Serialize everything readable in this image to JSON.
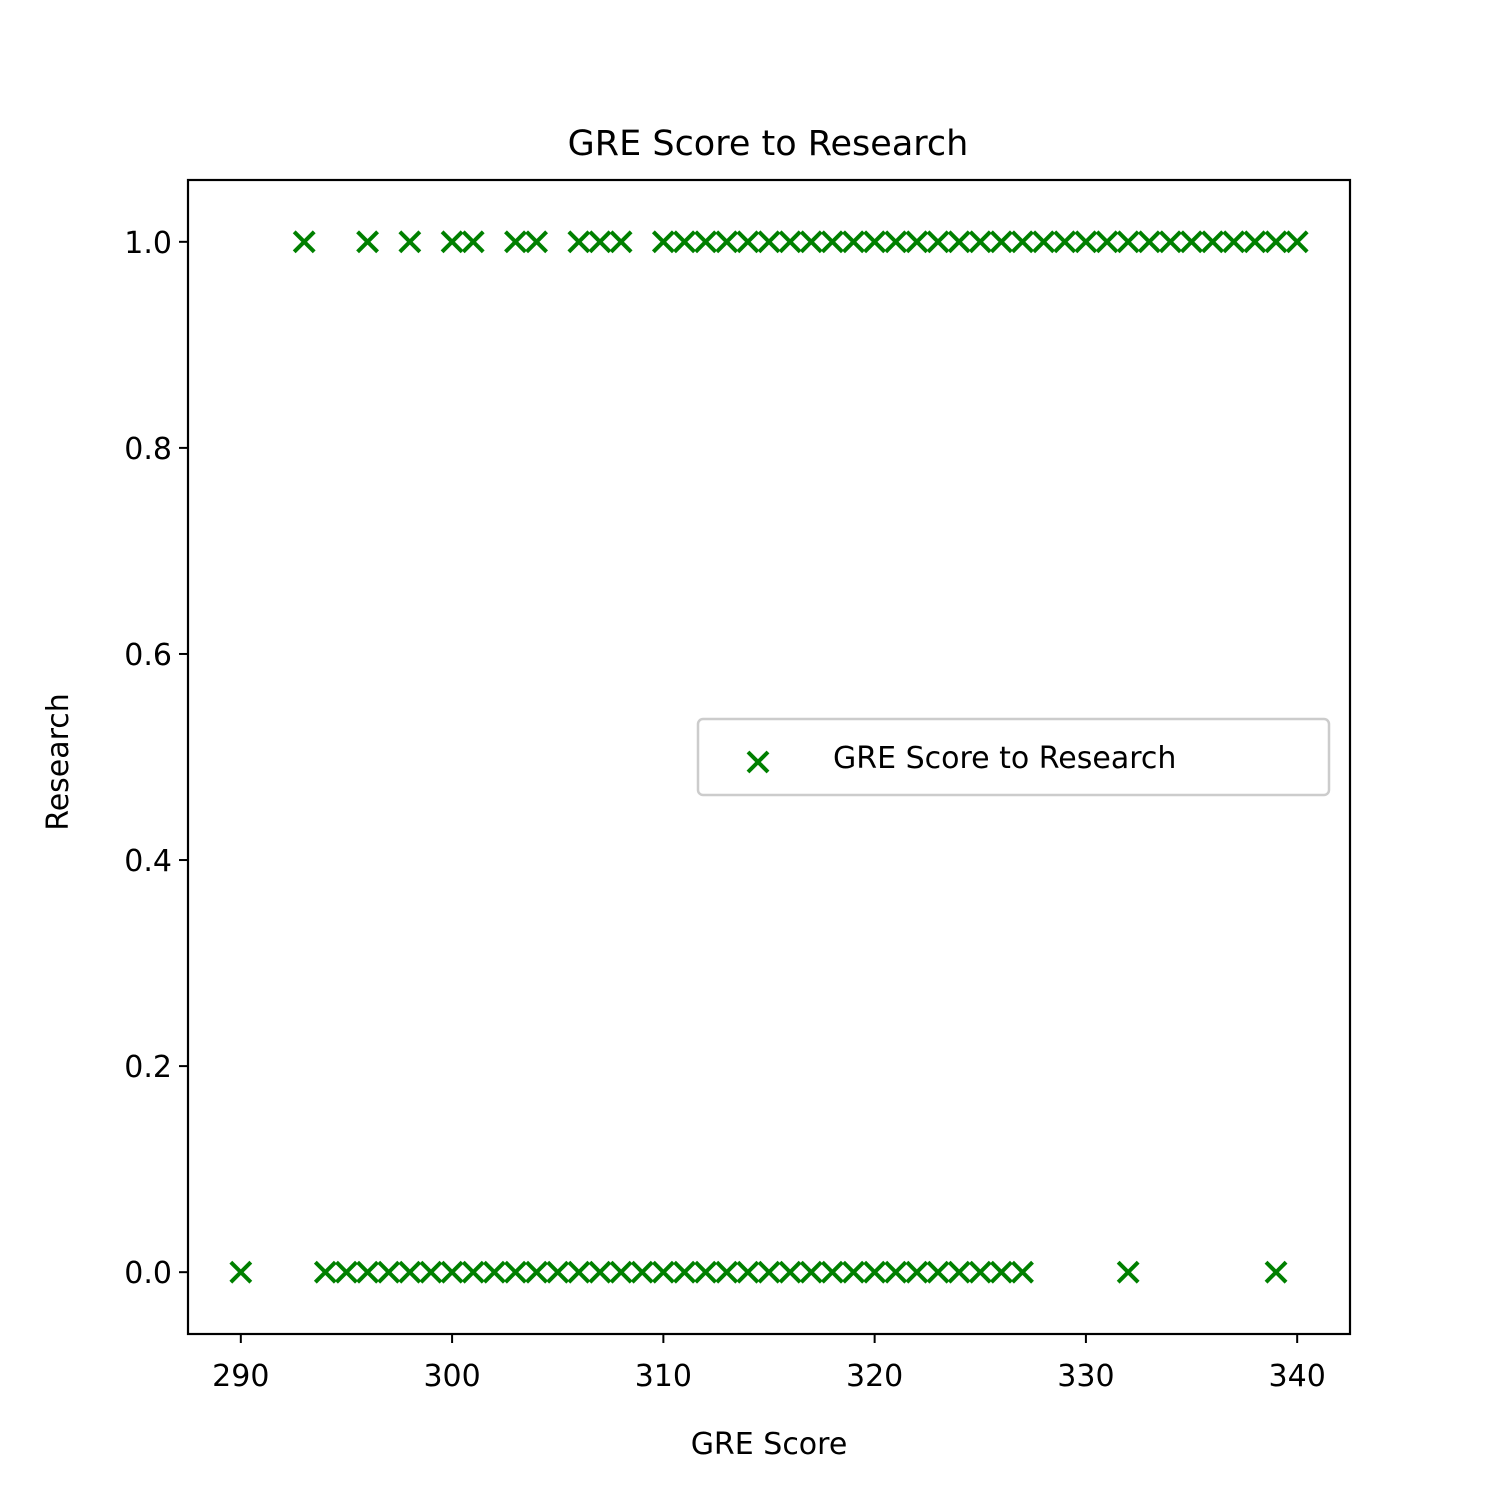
{
  "chart_data": {
    "type": "scatter",
    "title": "GRE Score to Research",
    "xlabel": "GRE Score",
    "ylabel": "Research",
    "xlim": [
      287.5,
      342.5
    ],
    "ylim": [
      -0.06,
      1.06
    ],
    "xticks": [
      290,
      300,
      310,
      320,
      330,
      340
    ],
    "xtick_labels": [
      "290",
      "300",
      "310",
      "320",
      "330",
      "340"
    ],
    "yticks": [
      0.0,
      0.2,
      0.4,
      0.6,
      0.8,
      1.0
    ],
    "ytick_labels": [
      "0.0",
      "0.2",
      "0.4",
      "0.6",
      "0.8",
      "1.0"
    ],
    "grid": false,
    "legend_position": "center-right",
    "marker": "x",
    "color": "#008000",
    "series": [
      {
        "name": "GRE Score to Research",
        "points": [
          [
            293,
            1
          ],
          [
            296,
            1
          ],
          [
            298,
            1
          ],
          [
            300,
            1
          ],
          [
            301,
            1
          ],
          [
            303,
            1
          ],
          [
            304,
            1
          ],
          [
            306,
            1
          ],
          [
            307,
            1
          ],
          [
            308,
            1
          ],
          [
            310,
            1
          ],
          [
            311,
            1
          ],
          [
            312,
            1
          ],
          [
            313,
            1
          ],
          [
            314,
            1
          ],
          [
            315,
            1
          ],
          [
            316,
            1
          ],
          [
            317,
            1
          ],
          [
            318,
            1
          ],
          [
            319,
            1
          ],
          [
            320,
            1
          ],
          [
            321,
            1
          ],
          [
            322,
            1
          ],
          [
            323,
            1
          ],
          [
            324,
            1
          ],
          [
            325,
            1
          ],
          [
            326,
            1
          ],
          [
            327,
            1
          ],
          [
            328,
            1
          ],
          [
            329,
            1
          ],
          [
            330,
            1
          ],
          [
            331,
            1
          ],
          [
            332,
            1
          ],
          [
            333,
            1
          ],
          [
            334,
            1
          ],
          [
            335,
            1
          ],
          [
            336,
            1
          ],
          [
            337,
            1
          ],
          [
            338,
            1
          ],
          [
            339,
            1
          ],
          [
            340,
            1
          ],
          [
            290,
            0
          ],
          [
            294,
            0
          ],
          [
            295,
            0
          ],
          [
            296,
            0
          ],
          [
            297,
            0
          ],
          [
            298,
            0
          ],
          [
            299,
            0
          ],
          [
            300,
            0
          ],
          [
            301,
            0
          ],
          [
            302,
            0
          ],
          [
            303,
            0
          ],
          [
            304,
            0
          ],
          [
            305,
            0
          ],
          [
            306,
            0
          ],
          [
            307,
            0
          ],
          [
            308,
            0
          ],
          [
            309,
            0
          ],
          [
            310,
            0
          ],
          [
            311,
            0
          ],
          [
            312,
            0
          ],
          [
            313,
            0
          ],
          [
            314,
            0
          ],
          [
            315,
            0
          ],
          [
            316,
            0
          ],
          [
            317,
            0
          ],
          [
            318,
            0
          ],
          [
            319,
            0
          ],
          [
            320,
            0
          ],
          [
            321,
            0
          ],
          [
            322,
            0
          ],
          [
            323,
            0
          ],
          [
            324,
            0
          ],
          [
            325,
            0
          ],
          [
            326,
            0
          ],
          [
            327,
            0
          ],
          [
            332,
            0
          ],
          [
            339,
            0
          ]
        ]
      }
    ]
  }
}
